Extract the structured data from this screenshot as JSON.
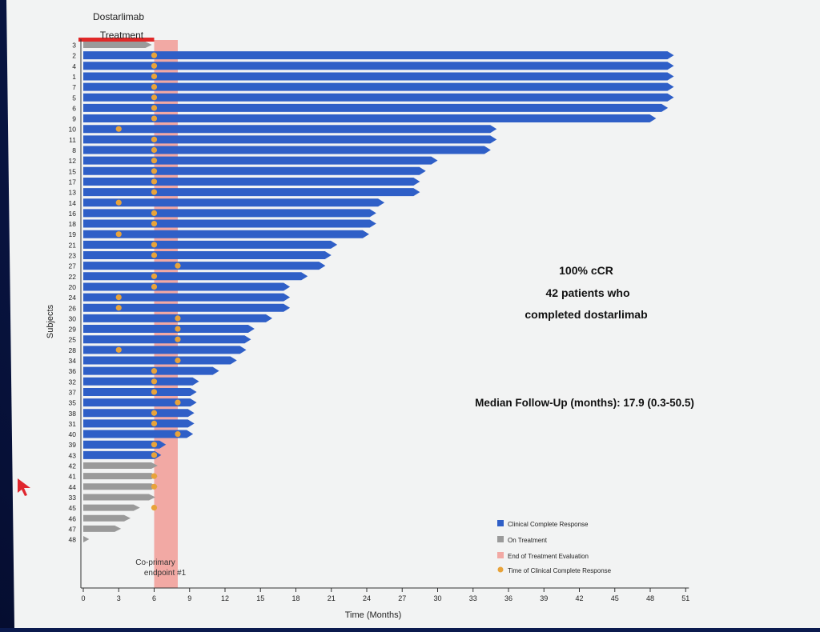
{
  "slide": {
    "treatment_label_1": "Dostarlimab",
    "treatment_label_2": "Treatment",
    "annotation_line1": "100% cCR",
    "annotation_line2": "42 patients who",
    "annotation_line3": "completed dostarlimab",
    "median_followup": "Median Follow-Up (months): 17.9 (0.3-50.5)",
    "endpoint_line1": "Co-primary",
    "endpoint_line2": "endpoint #1"
  },
  "colors": {
    "ccr": "#2f5fc7",
    "on_treatment": "#9a9a9a",
    "eot_eval": "#f2a9a4",
    "time_of_ccr": "#e8a33a",
    "treatment_bar": "#e02828"
  },
  "chart_data": {
    "type": "swimmer",
    "xlabel": "Time (Months)",
    "ylabel": "Subjects",
    "xlim": [
      0,
      51
    ],
    "xticks": [
      0,
      3,
      6,
      9,
      12,
      15,
      18,
      21,
      24,
      27,
      30,
      33,
      36,
      39,
      42,
      45,
      48,
      51
    ],
    "eot_eval_window": [
      6,
      8
    ],
    "legend": [
      {
        "label": "Clinical Complete Response",
        "color": "#2f5fc7",
        "shape": "square"
      },
      {
        "label": "On Treatment",
        "color": "#9a9a9a",
        "shape": "square"
      },
      {
        "label": "End of Treatment Evaluation",
        "color": "#f2a9a4",
        "shape": "square"
      },
      {
        "label": "Time of Clinical Complete Response",
        "color": "#e8a33a",
        "shape": "circle"
      }
    ],
    "subjects": [
      {
        "id": "3",
        "end": 5.8,
        "status": "treatment",
        "ccr": null
      },
      {
        "id": "2",
        "end": 50.0,
        "status": "ccr",
        "ccr": 6
      },
      {
        "id": "4",
        "end": 50.0,
        "status": "ccr",
        "ccr": 6
      },
      {
        "id": "1",
        "end": 50.0,
        "status": "ccr",
        "ccr": 6
      },
      {
        "id": "7",
        "end": 50.0,
        "status": "ccr",
        "ccr": 6
      },
      {
        "id": "5",
        "end": 50.0,
        "status": "ccr",
        "ccr": 6
      },
      {
        "id": "6",
        "end": 49.5,
        "status": "ccr",
        "ccr": 6
      },
      {
        "id": "9",
        "end": 48.5,
        "status": "ccr",
        "ccr": 6
      },
      {
        "id": "10",
        "end": 35.0,
        "status": "ccr",
        "ccr": 3
      },
      {
        "id": "11",
        "end": 35.0,
        "status": "ccr",
        "ccr": 6
      },
      {
        "id": "8",
        "end": 34.5,
        "status": "ccr",
        "ccr": 6
      },
      {
        "id": "12",
        "end": 30.0,
        "status": "ccr",
        "ccr": 6
      },
      {
        "id": "15",
        "end": 29.0,
        "status": "ccr",
        "ccr": 6
      },
      {
        "id": "17",
        "end": 28.5,
        "status": "ccr",
        "ccr": 6
      },
      {
        "id": "13",
        "end": 28.5,
        "status": "ccr",
        "ccr": 6
      },
      {
        "id": "14",
        "end": 25.5,
        "status": "ccr",
        "ccr": 3
      },
      {
        "id": "16",
        "end": 24.8,
        "status": "ccr",
        "ccr": 6
      },
      {
        "id": "18",
        "end": 24.8,
        "status": "ccr",
        "ccr": 6
      },
      {
        "id": "19",
        "end": 24.2,
        "status": "ccr",
        "ccr": 3
      },
      {
        "id": "21",
        "end": 21.5,
        "status": "ccr",
        "ccr": 6
      },
      {
        "id": "23",
        "end": 21.0,
        "status": "ccr",
        "ccr": 6
      },
      {
        "id": "27",
        "end": 20.5,
        "status": "ccr",
        "ccr": 8
      },
      {
        "id": "22",
        "end": 19.0,
        "status": "ccr",
        "ccr": 6
      },
      {
        "id": "20",
        "end": 17.5,
        "status": "ccr",
        "ccr": 6
      },
      {
        "id": "24",
        "end": 17.5,
        "status": "ccr",
        "ccr": 3
      },
      {
        "id": "26",
        "end": 17.5,
        "status": "ccr",
        "ccr": 3
      },
      {
        "id": "30",
        "end": 16.0,
        "status": "ccr",
        "ccr": 8
      },
      {
        "id": "29",
        "end": 14.5,
        "status": "ccr",
        "ccr": 8
      },
      {
        "id": "25",
        "end": 14.2,
        "status": "ccr",
        "ccr": 8
      },
      {
        "id": "28",
        "end": 13.8,
        "status": "ccr",
        "ccr": 3
      },
      {
        "id": "34",
        "end": 13.0,
        "status": "ccr",
        "ccr": 8
      },
      {
        "id": "36",
        "end": 11.5,
        "status": "ccr",
        "ccr": 6
      },
      {
        "id": "32",
        "end": 9.8,
        "status": "ccr",
        "ccr": 6
      },
      {
        "id": "37",
        "end": 9.6,
        "status": "ccr",
        "ccr": 6
      },
      {
        "id": "35",
        "end": 9.6,
        "status": "ccr",
        "ccr": 8
      },
      {
        "id": "38",
        "end": 9.4,
        "status": "ccr",
        "ccr": 6
      },
      {
        "id": "31",
        "end": 9.4,
        "status": "ccr",
        "ccr": 6
      },
      {
        "id": "40",
        "end": 9.3,
        "status": "ccr",
        "ccr": 8
      },
      {
        "id": "39",
        "end": 7.0,
        "status": "ccr",
        "ccr": 6
      },
      {
        "id": "43",
        "end": 6.6,
        "status": "ccr",
        "ccr": 6
      },
      {
        "id": "42",
        "end": 6.3,
        "status": "treatment",
        "ccr": null
      },
      {
        "id": "41",
        "end": 6.3,
        "status": "treatment",
        "ccr": 6
      },
      {
        "id": "44",
        "end": 6.3,
        "status": "treatment",
        "ccr": 6
      },
      {
        "id": "33",
        "end": 6.1,
        "status": "treatment",
        "ccr": null
      },
      {
        "id": "45",
        "end": 4.8,
        "status": "treatment",
        "ccr": 6
      },
      {
        "id": "46",
        "end": 4.0,
        "status": "treatment",
        "ccr": null
      },
      {
        "id": "47",
        "end": 3.2,
        "status": "treatment",
        "ccr": null
      },
      {
        "id": "48",
        "end": 0.5,
        "status": "treatment",
        "ccr": null
      }
    ]
  }
}
